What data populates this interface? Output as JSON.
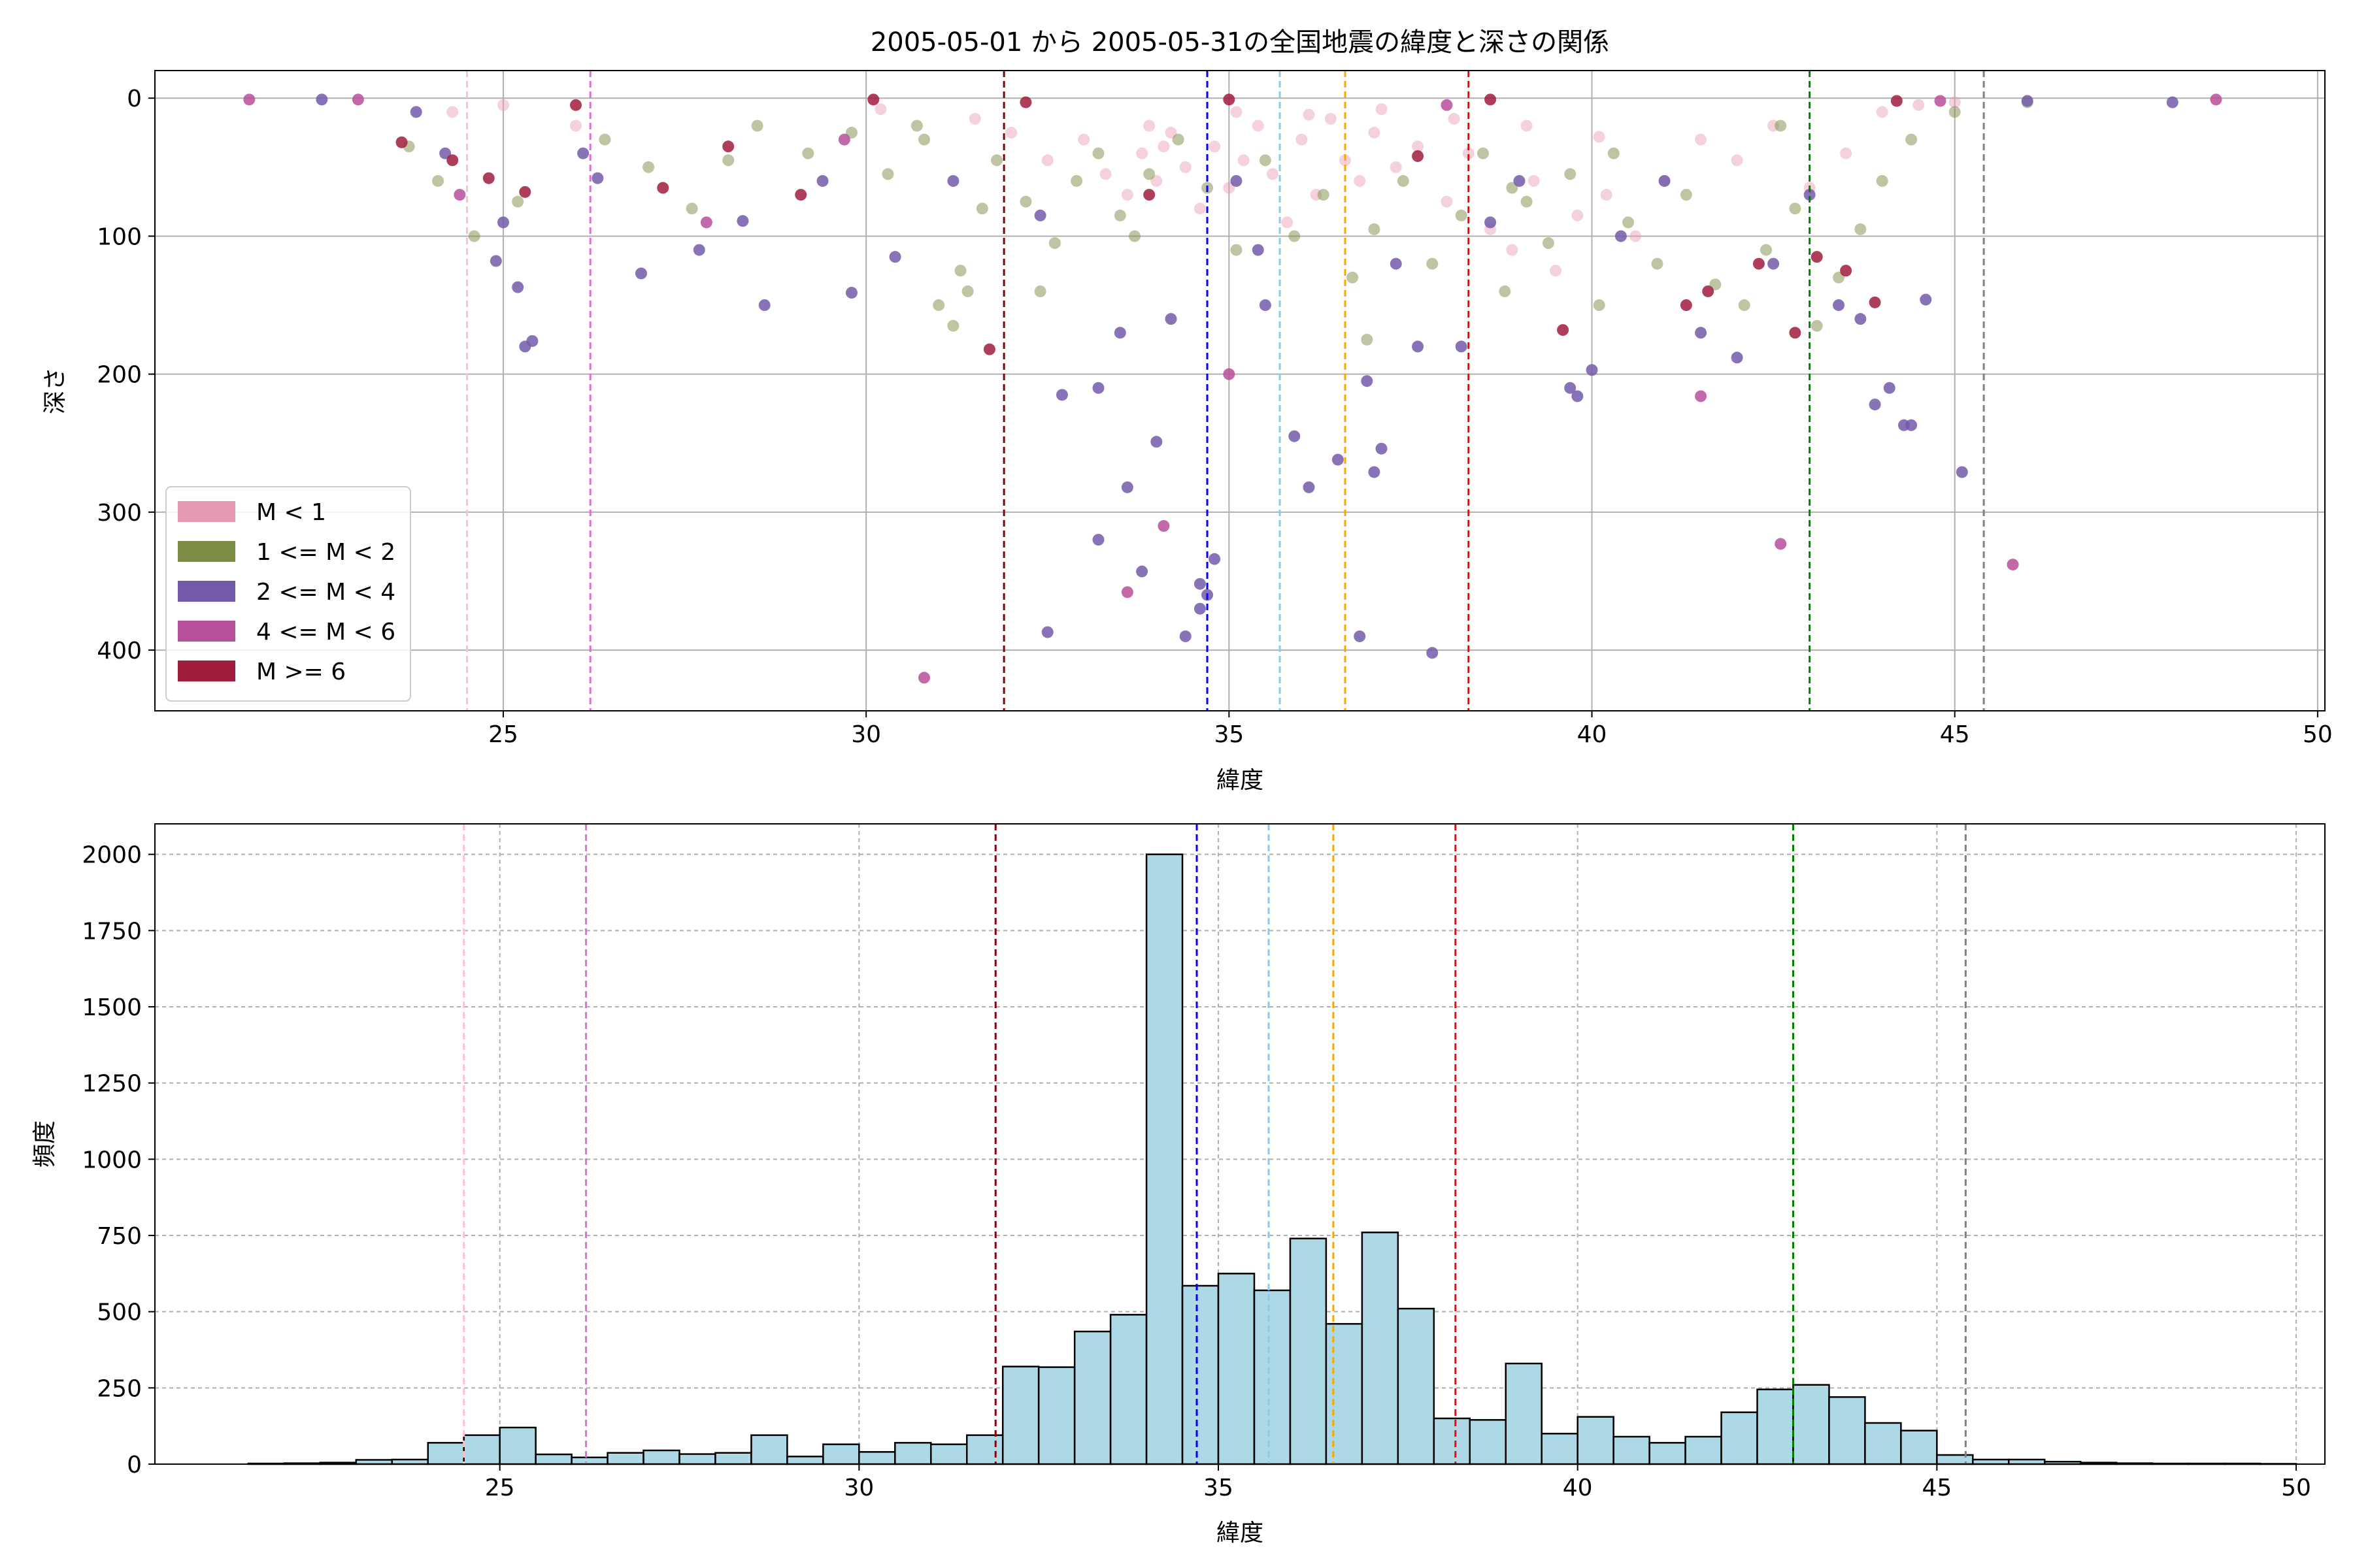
{
  "figure": {
    "title": "2005-05-01 から 2005-05-31の全国地震の緯度と深さの関係"
  },
  "colors": {
    "m_lt1": "#e69ab4",
    "m_1_2": "#7b8c45",
    "m_2_4": "#735aa9",
    "m_4_6": "#b84f9a",
    "m_ge6": "#a01c3c",
    "hist_fill": "#add8e6",
    "grid": "#b0b0b0"
  },
  "chart_data": [
    {
      "type": "scatter",
      "xlabel": "緯度",
      "ylabel": "深さ",
      "xlim": [
        20.2,
        50.1
      ],
      "ylim": [
        444,
        -20
      ],
      "y_inverted": true,
      "xticks": [
        25,
        30,
        35,
        40,
        45,
        50
      ],
      "yticks": [
        0,
        100,
        200,
        300,
        400
      ],
      "grid": true,
      "legend_position": "lower-left",
      "legend": [
        {
          "label": "M < 1",
          "color": "#e69ab4"
        },
        {
          "label": "1 <= M < 2",
          "color": "#7b8c45"
        },
        {
          "label": "2 <= M < 4",
          "color": "#735aa9"
        },
        {
          "label": "4 <= M < 6",
          "color": "#b84f9a"
        },
        {
          "label": "M >= 6",
          "color": "#a01c3c"
        }
      ],
      "vlines": [
        {
          "x": 24.5,
          "color": "pink"
        },
        {
          "x": 26.2,
          "color": "orchid"
        },
        {
          "x": 31.9,
          "color": "darkred"
        },
        {
          "x": 34.7,
          "color": "blue"
        },
        {
          "x": 35.7,
          "color": "skyblue"
        },
        {
          "x": 36.6,
          "color": "orange"
        },
        {
          "x": 38.3,
          "color": "red"
        },
        {
          "x": 43.0,
          "color": "green"
        },
        {
          "x": 45.4,
          "color": "gray"
        }
      ],
      "series": [
        {
          "name": "M < 1",
          "color": "#e69ab4",
          "points": [
            [
              24.3,
              10
            ],
            [
              25.0,
              5
            ],
            [
              26.0,
              20
            ],
            [
              30.2,
              8
            ],
            [
              31.5,
              15
            ],
            [
              32.0,
              25
            ],
            [
              32.5,
              45
            ],
            [
              33.0,
              30
            ],
            [
              33.3,
              55
            ],
            [
              33.6,
              70
            ],
            [
              33.8,
              40
            ],
            [
              34.0,
              60
            ],
            [
              34.2,
              25
            ],
            [
              34.4,
              50
            ],
            [
              34.6,
              80
            ],
            [
              34.8,
              35
            ],
            [
              35.0,
              65
            ],
            [
              35.2,
              45
            ],
            [
              35.4,
              20
            ],
            [
              35.6,
              55
            ],
            [
              35.8,
              90
            ],
            [
              36.0,
              30
            ],
            [
              36.2,
              70
            ],
            [
              36.4,
              15
            ],
            [
              36.6,
              45
            ],
            [
              36.8,
              60
            ],
            [
              37.0,
              25
            ],
            [
              37.3,
              50
            ],
            [
              37.6,
              35
            ],
            [
              38.0,
              75
            ],
            [
              38.3,
              40
            ],
            [
              38.6,
              95
            ],
            [
              38.9,
              110
            ],
            [
              39.2,
              60
            ],
            [
              39.5,
              125
            ],
            [
              39.8,
              85
            ],
            [
              40.2,
              70
            ],
            [
              40.6,
              100
            ],
            [
              41.0,
              60
            ],
            [
              41.5,
              30
            ],
            [
              42.0,
              45
            ],
            [
              42.5,
              20
            ],
            [
              43.0,
              65
            ],
            [
              43.5,
              40
            ],
            [
              44.0,
              10
            ],
            [
              44.5,
              5
            ],
            [
              45.0,
              3
            ],
            [
              33.9,
              20
            ],
            [
              34.1,
              35
            ],
            [
              35.1,
              10
            ],
            [
              36.1,
              12
            ],
            [
              37.1,
              8
            ],
            [
              38.1,
              15
            ],
            [
              39.1,
              20
            ],
            [
              40.1,
              28
            ]
          ]
        },
        {
          "name": "1 <= M < 2",
          "color": "#7b8c45",
          "points": [
            [
              23.7,
              35
            ],
            [
              24.1,
              60
            ],
            [
              24.6,
              100
            ],
            [
              25.2,
              75
            ],
            [
              26.4,
              30
            ],
            [
              27.0,
              50
            ],
            [
              27.6,
              80
            ],
            [
              28.1,
              45
            ],
            [
              28.5,
              20
            ],
            [
              29.2,
              40
            ],
            [
              29.8,
              25
            ],
            [
              30.3,
              55
            ],
            [
              30.7,
              20
            ],
            [
              31.0,
              150
            ],
            [
              31.2,
              165
            ],
            [
              31.4,
              140
            ],
            [
              31.6,
              80
            ],
            [
              31.8,
              45
            ],
            [
              32.2,
              75
            ],
            [
              32.6,
              105
            ],
            [
              32.9,
              60
            ],
            [
              33.2,
              40
            ],
            [
              33.5,
              85
            ],
            [
              33.9,
              55
            ],
            [
              34.3,
              30
            ],
            [
              34.7,
              65
            ],
            [
              35.1,
              110
            ],
            [
              35.5,
              45
            ],
            [
              35.9,
              100
            ],
            [
              36.3,
              70
            ],
            [
              36.7,
              130
            ],
            [
              37.0,
              95
            ],
            [
              37.4,
              60
            ],
            [
              37.8,
              120
            ],
            [
              38.2,
              85
            ],
            [
              38.5,
              40
            ],
            [
              38.8,
              140
            ],
            [
              39.1,
              75
            ],
            [
              39.4,
              105
            ],
            [
              39.7,
              55
            ],
            [
              40.1,
              150
            ],
            [
              40.5,
              90
            ],
            [
              40.9,
              120
            ],
            [
              41.3,
              70
            ],
            [
              41.7,
              135
            ],
            [
              42.1,
              150
            ],
            [
              42.4,
              110
            ],
            [
              42.8,
              80
            ],
            [
              43.1,
              165
            ],
            [
              43.4,
              130
            ],
            [
              43.7,
              95
            ],
            [
              44.0,
              60
            ],
            [
              44.4,
              30
            ],
            [
              45.0,
              10
            ],
            [
              46.0,
              3
            ],
            [
              30.8,
              30
            ],
            [
              31.3,
              125
            ],
            [
              32.4,
              140
            ],
            [
              33.7,
              100
            ],
            [
              36.9,
              175
            ],
            [
              38.9,
              65
            ],
            [
              40.3,
              40
            ],
            [
              42.6,
              20
            ]
          ]
        },
        {
          "name": "2 <= M < 4",
          "color": "#735aa9",
          "points": [
            [
              22.5,
              1
            ],
            [
              23.8,
              10
            ],
            [
              24.2,
              40
            ],
            [
              24.9,
              118
            ],
            [
              25.3,
              180
            ],
            [
              25.4,
              176
            ],
            [
              25.2,
              137
            ],
            [
              25.0,
              90
            ],
            [
              26.1,
              40
            ],
            [
              26.3,
              58
            ],
            [
              26.9,
              127
            ],
            [
              27.7,
              110
            ],
            [
              28.3,
              89
            ],
            [
              28.6,
              150
            ],
            [
              29.4,
              60
            ],
            [
              29.8,
              141
            ],
            [
              30.4,
              115
            ],
            [
              31.2,
              60
            ],
            [
              32.4,
              85
            ],
            [
              32.7,
              215
            ],
            [
              33.2,
              320
            ],
            [
              33.5,
              170
            ],
            [
              33.6,
              282
            ],
            [
              33.8,
              343
            ],
            [
              34.0,
              249
            ],
            [
              34.4,
              390
            ],
            [
              34.6,
              352
            ],
            [
              34.6,
              370
            ],
            [
              34.7,
              360
            ],
            [
              34.8,
              334
            ],
            [
              35.1,
              60
            ],
            [
              35.5,
              150
            ],
            [
              35.9,
              245
            ],
            [
              36.1,
              282
            ],
            [
              36.5,
              262
            ],
            [
              36.9,
              205
            ],
            [
              37.0,
              271
            ],
            [
              37.1,
              254
            ],
            [
              37.3,
              120
            ],
            [
              37.6,
              180
            ],
            [
              37.8,
              402
            ],
            [
              38.2,
              180
            ],
            [
              38.6,
              90
            ],
            [
              39.0,
              60
            ],
            [
              39.7,
              210
            ],
            [
              39.8,
              216
            ],
            [
              40.0,
              197
            ],
            [
              40.4,
              100
            ],
            [
              41.0,
              60
            ],
            [
              41.5,
              170
            ],
            [
              42.0,
              188
            ],
            [
              42.5,
              120
            ],
            [
              43.0,
              70
            ],
            [
              43.4,
              150
            ],
            [
              43.7,
              160
            ],
            [
              43.9,
              222
            ],
            [
              44.1,
              210
            ],
            [
              44.3,
              237
            ],
            [
              44.4,
              237
            ],
            [
              44.6,
              146
            ],
            [
              45.1,
              271
            ],
            [
              46.0,
              2
            ],
            [
              48.0,
              3
            ],
            [
              33.2,
              210
            ],
            [
              36.8,
              390
            ],
            [
              32.5,
              387
            ],
            [
              34.2,
              160
            ],
            [
              35.4,
              110
            ]
          ]
        },
        {
          "name": "4 <= M < 6",
          "color": "#b84f9a",
          "points": [
            [
              21.5,
              1
            ],
            [
              23.0,
              1
            ],
            [
              24.4,
              70
            ],
            [
              27.8,
              90
            ],
            [
              30.8,
              420
            ],
            [
              33.6,
              358
            ],
            [
              34.1,
              310
            ],
            [
              35.0,
              200
            ],
            [
              41.5,
              216
            ],
            [
              42.6,
              323
            ],
            [
              45.8,
              338
            ],
            [
              48.6,
              1
            ],
            [
              29.7,
              30
            ],
            [
              38.0,
              5
            ],
            [
              44.8,
              2
            ]
          ]
        },
        {
          "name": "M >= 6",
          "color": "#a01c3c",
          "points": [
            [
              23.6,
              32
            ],
            [
              24.3,
              45
            ],
            [
              24.8,
              58
            ],
            [
              25.3,
              68
            ],
            [
              26.0,
              5
            ],
            [
              27.2,
              65
            ],
            [
              28.1,
              35
            ],
            [
              29.1,
              70
            ],
            [
              31.7,
              182
            ],
            [
              33.9,
              70
            ],
            [
              37.6,
              42
            ],
            [
              39.6,
              168
            ],
            [
              41.3,
              150
            ],
            [
              41.6,
              140
            ],
            [
              42.3,
              120
            ],
            [
              42.8,
              170
            ],
            [
              43.1,
              115
            ],
            [
              43.5,
              125
            ],
            [
              43.9,
              148
            ],
            [
              44.2,
              2
            ],
            [
              38.6,
              1
            ],
            [
              35.0,
              1
            ],
            [
              32.2,
              3
            ],
            [
              30.1,
              1
            ]
          ]
        }
      ]
    },
    {
      "type": "bar",
      "xlabel": "緯度",
      "ylabel": "頻度",
      "xlim": [
        20.2,
        50.4
      ],
      "ylim": [
        0,
        2100
      ],
      "xticks": [
        25,
        30,
        35,
        40,
        45,
        50
      ],
      "yticks": [
        0,
        250,
        500,
        750,
        1000,
        1250,
        1500,
        1750,
        2000
      ],
      "grid": true,
      "bin_width": 0.5,
      "bin_start": 21.5,
      "values": [
        2,
        3,
        5,
        14,
        15,
        70,
        95,
        120,
        32,
        22,
        37,
        45,
        33,
        37,
        95,
        25,
        65,
        40,
        70,
        65,
        95,
        320,
        318,
        435,
        490,
        2000,
        585,
        625,
        570,
        740,
        460,
        760,
        510,
        150,
        145,
        330,
        100,
        155,
        90,
        70,
        90,
        170,
        245,
        260,
        220,
        135,
        110,
        30,
        15,
        15,
        8,
        5,
        3,
        2,
        2,
        2,
        1
      ],
      "vlines": [
        {
          "x": 24.5,
          "color": "pink"
        },
        {
          "x": 26.2,
          "color": "orchid"
        },
        {
          "x": 31.9,
          "color": "darkred"
        },
        {
          "x": 34.7,
          "color": "blue"
        },
        {
          "x": 35.7,
          "color": "skyblue"
        },
        {
          "x": 36.6,
          "color": "orange"
        },
        {
          "x": 38.3,
          "color": "red"
        },
        {
          "x": 43.0,
          "color": "green"
        },
        {
          "x": 45.4,
          "color": "gray"
        }
      ]
    }
  ]
}
